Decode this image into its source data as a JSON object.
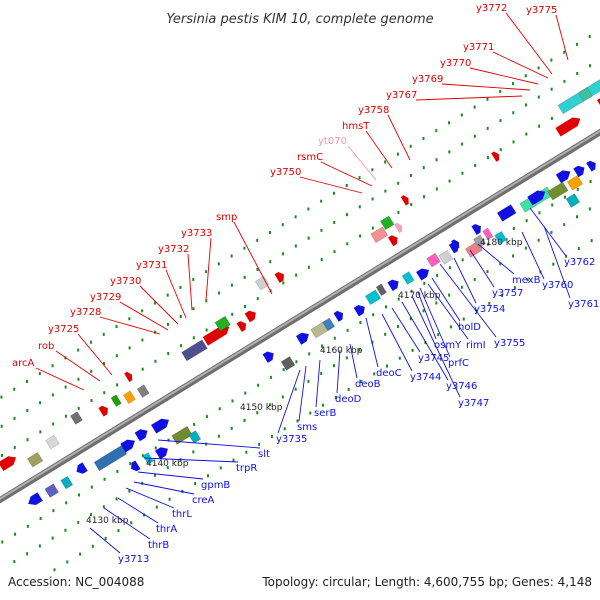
{
  "title": "Yersinia pestis KIM 10, complete genome",
  "footer": {
    "accession": "Accession: NC_004088",
    "summary": "Topology: circular; Length: 4,600,755 bp; Genes: 4,148"
  },
  "colors": {
    "label_top": "#e00000",
    "label_top_light": "#f39ab0",
    "label_bottom": "#1010e0",
    "backbone": "#8a8a8a",
    "tick": "#1a8a1a"
  },
  "scale": {
    "ticks": [
      "4130 kbp",
      "4140 kbp",
      "4150 kbp",
      "4160 kbp",
      "4170 kbp",
      "4180 kbp"
    ]
  },
  "labels_top": [
    "arcA",
    "rob",
    "y3725",
    "y3728",
    "y3729",
    "y3730",
    "y3731",
    "y3732",
    "y3733",
    "smp",
    "y3750",
    "rsmC",
    "yt070",
    "hmsT",
    "y3758",
    "y3767",
    "y3769",
    "y3770",
    "y3771",
    "y3772",
    "y3775"
  ],
  "labels_bottom": [
    "y3713",
    "thrB",
    "thrA",
    "thrL",
    "creA",
    "gpmB",
    "trpR",
    "slt",
    "y3735",
    "sms",
    "serB",
    "deoD",
    "deoB",
    "deoC",
    "y3744",
    "y3745",
    "y3746",
    "y3747",
    "osmY",
    "prfC",
    "rimI",
    "holD",
    "y3755",
    "y3754",
    "y3757",
    "mexB",
    "y3760",
    "y3761",
    "y3762"
  ]
}
